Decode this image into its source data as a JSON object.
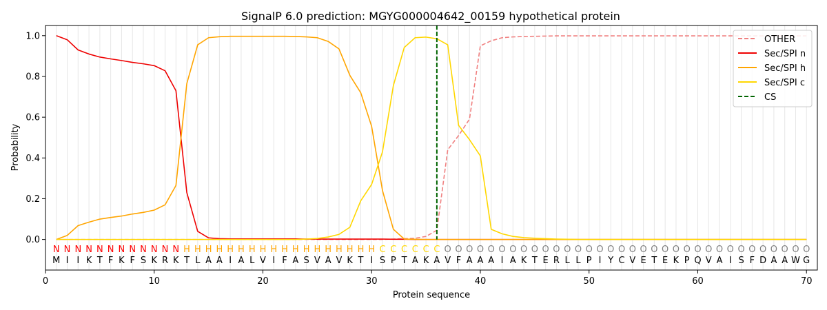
{
  "chart_data": {
    "type": "line",
    "title": "SignalP 6.0 prediction: MGYG000004642_00159 hypothetical protein",
    "xlabel": "Protein sequence",
    "ylabel": "Probability",
    "xlim": [
      0,
      71
    ],
    "ylim": [
      -0.15,
      1.05
    ],
    "xticks": [
      0,
      10,
      20,
      30,
      40,
      50,
      60,
      70
    ],
    "yticks": [
      0.0,
      0.2,
      0.4,
      0.6,
      0.8,
      1.0
    ],
    "ytick_labels": [
      "0.0",
      "0.2",
      "0.4",
      "0.6",
      "0.8",
      "1.0"
    ],
    "legend_position": "top-right",
    "grid": "vertical lines at each residue",
    "sequence": [
      "M",
      "I",
      "I",
      "K",
      "T",
      "F",
      "K",
      "F",
      "S",
      "K",
      "R",
      "K",
      "T",
      "L",
      "A",
      "A",
      "I",
      "A",
      "L",
      "V",
      "I",
      "F",
      "A",
      "S",
      "V",
      "A",
      "V",
      "K",
      "T",
      "I",
      "S",
      "P",
      "T",
      "A",
      "K",
      "A",
      "V",
      "F",
      "A",
      "A",
      "A",
      "I",
      "A",
      "K",
      "T",
      "E",
      "R",
      "L",
      "L",
      "P",
      "I",
      "Y",
      "C",
      "V",
      "E",
      "T",
      "E",
      "K",
      "P",
      "Q",
      "V",
      "A",
      "I",
      "S",
      "F",
      "D",
      "A",
      "A",
      "W",
      "G"
    ],
    "labels": [
      "N",
      "N",
      "N",
      "N",
      "N",
      "N",
      "N",
      "N",
      "N",
      "N",
      "N",
      "N",
      "H",
      "H",
      "H",
      "H",
      "H",
      "H",
      "H",
      "H",
      "H",
      "H",
      "H",
      "H",
      "H",
      "H",
      "H",
      "H",
      "H",
      "H",
      "C",
      "C",
      "C",
      "C",
      "C",
      "C",
      "O",
      "O",
      "O",
      "O",
      "O",
      "O",
      "O",
      "O",
      "O",
      "O",
      "O",
      "O",
      "O",
      "O",
      "O",
      "O",
      "O",
      "O",
      "O",
      "O",
      "O",
      "O",
      "O",
      "O",
      "O",
      "O",
      "O",
      "O",
      "O",
      "O",
      "O",
      "O",
      "O",
      "O"
    ],
    "label_colors": {
      "N": "#ff0000",
      "H": "#ffa500",
      "C": "#ffd700",
      "O": "#808080"
    },
    "cleavage_site": 36,
    "series": [
      {
        "name": "OTHER",
        "color": "#f08080",
        "style": "dashed",
        "values": [
          0.0,
          0.0,
          0.0,
          0.0,
          0.0,
          0.0,
          0.0,
          0.0,
          0.0,
          0.0,
          0.0,
          0.0,
          0.0,
          0.0,
          0.0,
          0.0,
          0.0,
          0.0,
          0.0,
          0.0,
          0.0,
          0.0,
          0.0,
          0.0,
          0.0,
          0.0,
          0.0,
          0.0,
          0.0,
          0.0,
          0.0,
          0.002,
          0.004,
          0.006,
          0.015,
          0.045,
          0.44,
          0.51,
          0.59,
          0.95,
          0.975,
          0.99,
          0.994,
          0.996,
          0.997,
          0.998,
          0.999,
          0.999,
          0.999,
          0.999,
          0.999,
          0.999,
          0.999,
          0.999,
          0.999,
          0.999,
          0.999,
          0.999,
          0.999,
          0.999,
          0.999,
          0.999,
          0.999,
          0.999,
          0.999,
          0.999,
          0.999,
          0.999,
          0.999,
          0.999
        ]
      },
      {
        "name": "Sec/SPI n",
        "color": "#ee0000",
        "style": "solid",
        "values": [
          1.0,
          0.98,
          0.93,
          0.91,
          0.895,
          0.886,
          0.878,
          0.869,
          0.862,
          0.853,
          0.828,
          0.73,
          0.23,
          0.04,
          0.008,
          0.004,
          0.003,
          0.003,
          0.003,
          0.003,
          0.003,
          0.003,
          0.003,
          0.002,
          0.002,
          0.002,
          0.002,
          0.002,
          0.002,
          0.002,
          0.002,
          0.001,
          0.001,
          0.0,
          0.0,
          0.0,
          0.0,
          0.0,
          0.0,
          0.0,
          0.0,
          0.0,
          0.0,
          0.0,
          0.0,
          0.0,
          0.0,
          0.0,
          0.0,
          0.0,
          0.0,
          0.0,
          0.0,
          0.0,
          0.0,
          0.0,
          0.0,
          0.0,
          0.0,
          0.0,
          0.0,
          0.0,
          0.0,
          0.0,
          0.0,
          0.0,
          0.0,
          0.0,
          0.0,
          0.0
        ]
      },
      {
        "name": "Sec/SPI h",
        "color": "#ffa500",
        "style": "solid",
        "values": [
          0.0,
          0.02,
          0.068,
          0.085,
          0.1,
          0.108,
          0.115,
          0.125,
          0.133,
          0.144,
          0.17,
          0.265,
          0.765,
          0.955,
          0.99,
          0.995,
          0.997,
          0.997,
          0.997,
          0.997,
          0.997,
          0.997,
          0.996,
          0.994,
          0.99,
          0.972,
          0.935,
          0.805,
          0.72,
          0.555,
          0.24,
          0.05,
          0.002,
          0.001,
          0.0,
          0.0,
          0.0,
          0.0,
          0.0,
          0.0,
          0.0,
          0.0,
          0.0,
          0.0,
          0.0,
          0.0,
          0.0,
          0.0,
          0.0,
          0.0,
          0.0,
          0.0,
          0.0,
          0.0,
          0.0,
          0.0,
          0.0,
          0.0,
          0.0,
          0.0,
          0.0,
          0.0,
          0.0,
          0.0,
          0.0,
          0.0,
          0.0,
          0.0,
          0.0,
          0.0
        ]
      },
      {
        "name": "Sec/SPI c",
        "color": "#ffd700",
        "style": "solid",
        "values": [
          0.0,
          0.0,
          0.0,
          0.0,
          0.0,
          0.0,
          0.0,
          0.0,
          0.0,
          0.0,
          0.0,
          0.0,
          0.0,
          0.0,
          0.0,
          0.0,
          0.0,
          0.0,
          0.0,
          0.0,
          0.0,
          0.0,
          0.0,
          0.002,
          0.005,
          0.012,
          0.025,
          0.06,
          0.19,
          0.27,
          0.43,
          0.755,
          0.942,
          0.99,
          0.993,
          0.985,
          0.955,
          0.56,
          0.49,
          0.41,
          0.05,
          0.028,
          0.015,
          0.009,
          0.006,
          0.004,
          0.002,
          0.001,
          0.0,
          0.0,
          0.0,
          0.0,
          0.0,
          0.0,
          0.0,
          0.0,
          0.0,
          0.0,
          0.0,
          0.0,
          0.0,
          0.0,
          0.0,
          0.0,
          0.0,
          0.0,
          0.0,
          0.0,
          0.0,
          0.0
        ]
      }
    ],
    "legend": [
      {
        "name": "OTHER",
        "color": "#f08080",
        "style": "dashed"
      },
      {
        "name": "Sec/SPI n",
        "color": "#ee0000",
        "style": "solid"
      },
      {
        "name": "Sec/SPI h",
        "color": "#ffa500",
        "style": "solid"
      },
      {
        "name": "Sec/SPI c",
        "color": "#ffd700",
        "style": "solid"
      },
      {
        "name": "CS",
        "color": "#006400",
        "style": "dashed"
      }
    ]
  }
}
